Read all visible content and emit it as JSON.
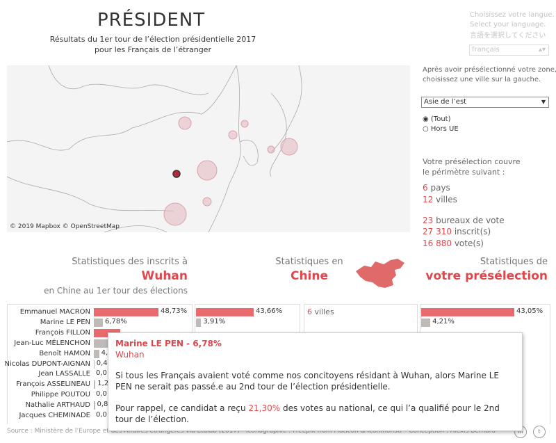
{
  "header": {
    "title": "PRÉSIDENT",
    "subtitle": [
      "Résultats du 1er tour de l’élection présidentielle 2017",
      "pour les Français de l’étranger"
    ]
  },
  "language": {
    "prompt": [
      "Choisissez votre langue.",
      "Select your language.",
      "言語を選択してください"
    ],
    "selected": "français"
  },
  "map": {
    "attribution": "© 2019 Mapbox © OpenStreetMap"
  },
  "filters": {
    "instructions": [
      "Après avoir présélectionné votre zone,",
      "choisissez une ville sur la gauche."
    ],
    "zone": "Asie de l’est",
    "options": [
      "(Tout)",
      "Hors UE"
    ]
  },
  "coverage": {
    "intro": [
      "Votre présélection couvre",
      "le périmètre suivant :"
    ],
    "items": [
      {
        "number": "6",
        "unit": "pays"
      },
      {
        "number": "12",
        "unit": "villes"
      },
      {
        "number": "23",
        "unit": "bureaux de vote"
      },
      {
        "number": "27 310",
        "unit": "inscrit(s)"
      },
      {
        "number": "16 880",
        "unit": "vote(s)"
      }
    ]
  },
  "stats": {
    "city": {
      "heading": "Statistiques des inscrits à",
      "name": "Wuhan",
      "caption": "en Chine au 1er tour des élections"
    },
    "country": {
      "heading": "Statistiques en",
      "name": "Chine",
      "cities": {
        "number": "6",
        "unit": "villes"
      }
    },
    "selection": {
      "heading": "Statistiques de",
      "name": "votre présélection"
    }
  },
  "chart_data": [
    {
      "type": "bar",
      "orientation": "horizontal",
      "categories": [
        "Emmanuel MACRON",
        "Marine LE PEN",
        "François FILLON",
        "Jean-Luc MÉLENCHON",
        "Benoît HAMON",
        "Nicolas DUPONT-AIGNAN",
        "Jean LASSALLE",
        "François ASSELINEAU",
        "Philippe POUTOU",
        "Nathalie ARTHAUD",
        "Jacques CHEMINADE"
      ],
      "values": [
        48.73,
        6.78,
        20,
        12,
        4,
        0.4,
        0.0,
        1.2,
        0.0,
        0.8,
        0.0
      ],
      "value_labels": [
        "48,73%",
        "6,78%",
        null,
        null,
        "4,",
        "0,4",
        "0,0",
        "1,2",
        "0,0",
        "0,8",
        "0,0"
      ],
      "colors": [
        "#e8696e",
        "#bdbab7",
        "#e8696e",
        "#bdbab7",
        "#bdbab7",
        "#bdbab7",
        "#bdbab7",
        "#bdbab7",
        "#bdbab7",
        "#bdbab7",
        "#bdbab7"
      ]
    },
    {
      "type": "bar",
      "orientation": "horizontal",
      "values": [
        43.66,
        3.91
      ],
      "value_labels": [
        "43,66%",
        "3,91%"
      ],
      "colors": [
        "#e8696e",
        "#bdbab7"
      ]
    },
    {
      "type": "bar",
      "orientation": "horizontal",
      "values": [
        43.05,
        4.21
      ],
      "value_labels": [
        "43,05%",
        "4,21%"
      ],
      "colors": [
        "#e8696e",
        "#bdbab7"
      ]
    }
  ],
  "tooltip": {
    "title": "Marine LE PEN - 6,78%",
    "city": "Wuhan",
    "text": "Si tous les Français avaient voté comme nos concitoyens résidant à Wuhan, alors Marine LE PEN ne serait pas passé.e au 2nd tour de l’élection présidentielle.",
    "reminder": [
      "Pour rappel, ce candidat a reçu ",
      "21,30%",
      " des votes au national, ce qui l’a qualifié pour le 2nd tour de l’élection."
    ]
  },
  "footer": {
    "source": "Source : Ministère de l’Europe et des Affaires étrangères via Etalab (2017) - Iconographie : Freepik from Flaticon & Iconmonstr - Conception : Alexis Bernard"
  }
}
